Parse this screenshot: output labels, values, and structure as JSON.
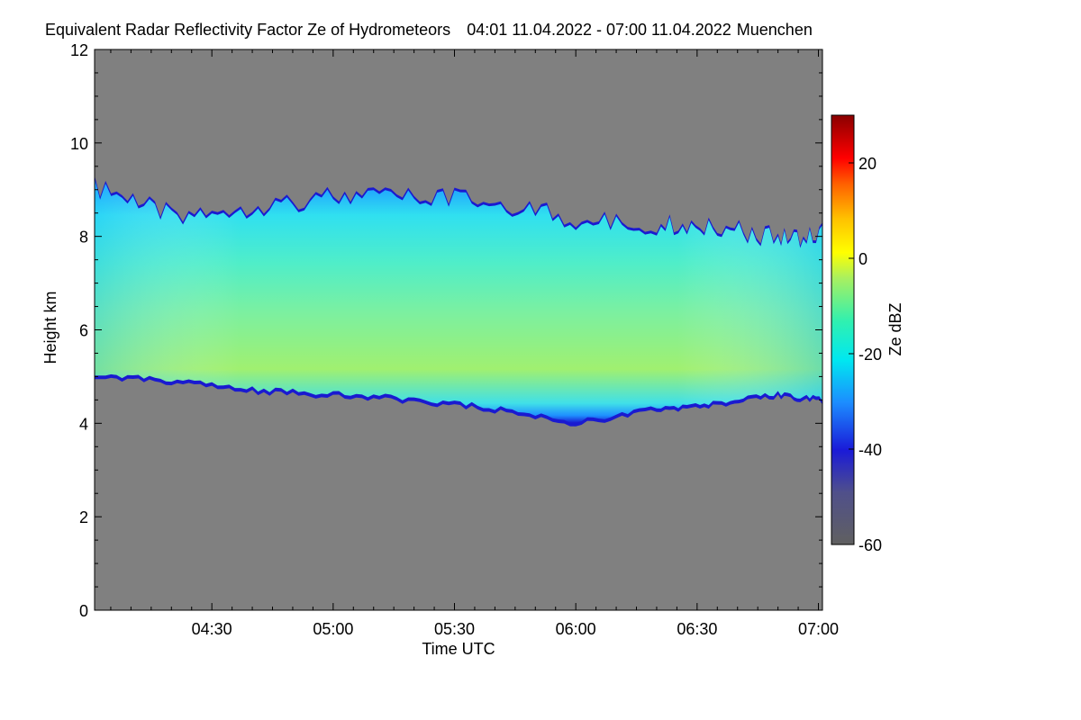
{
  "chart_data": {
    "type": "heatmap",
    "title": "Equivalent Radar Reflectivity Factor Ze of Hydrometeors",
    "time_range": "04:01 11.04.2022 - 07:00 11.04.2022",
    "location": "Muenchen",
    "xlabel": "Time UTC",
    "ylabel": "Height km",
    "x_ticks": [
      "04:30",
      "05:00",
      "05:30",
      "06:00",
      "06:30",
      "07:00"
    ],
    "x_tick_minutes": [
      30,
      60,
      90,
      120,
      150,
      180
    ],
    "xlim_minutes": [
      1,
      181
    ],
    "y_ticks": [
      "0",
      "2",
      "4",
      "6",
      "8",
      "10",
      "12"
    ],
    "y_tick_values": [
      0,
      2,
      4,
      6,
      8,
      10,
      12
    ],
    "ylim": [
      0,
      12
    ],
    "colorbar": {
      "label": "Ze dBZ",
      "ticks": [
        "20",
        "0",
        "-20",
        "-40",
        "-60"
      ],
      "tick_values": [
        20,
        0,
        -20,
        -40,
        -60
      ],
      "range": [
        -60,
        30
      ]
    },
    "no_data_color": "#808080",
    "cloud_layer": {
      "description_times_min": [
        1,
        20,
        40,
        60,
        80,
        100,
        120,
        140,
        155,
        170,
        181
      ],
      "base_km": [
        4.9,
        4.8,
        4.6,
        4.5,
        4.4,
        4.2,
        3.9,
        4.2,
        4.3,
        4.5,
        4.4
      ],
      "top_km": [
        9.3,
        8.7,
        8.9,
        9.1,
        9.1,
        9.0,
        8.6,
        8.5,
        8.5,
        8.2,
        8.3
      ],
      "peak_dbz": -5
    }
  }
}
